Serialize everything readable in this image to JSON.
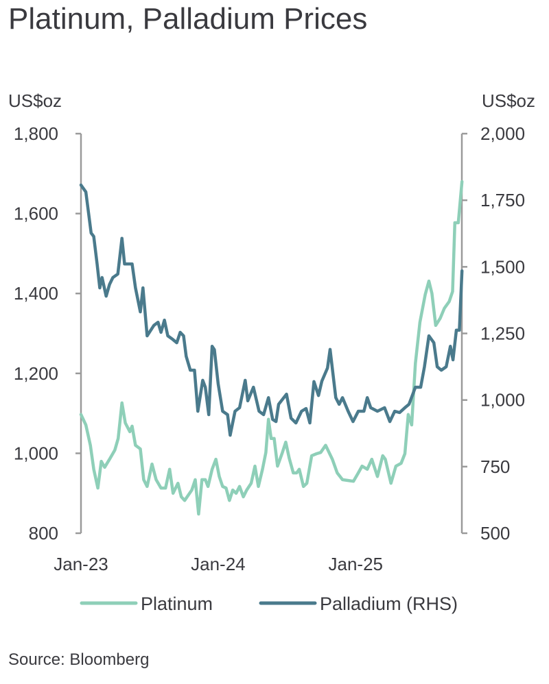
{
  "chart_data": {
    "type": "line",
    "title": "Platinum, Palladium Prices",
    "source": "Source: Bloomberg",
    "x_ticks": [
      "Jan-23",
      "Jan-24",
      "Jan-25"
    ],
    "x_tick_dates": [
      "2023-01-01",
      "2024-01-01",
      "2025-01-01"
    ],
    "xlim": [
      "2023-01-01",
      "2025-10-11"
    ],
    "y_left": {
      "label": "US$oz",
      "ylim": [
        800,
        1800
      ],
      "ticks": [
        "800",
        "1,000",
        "1,200",
        "1,400",
        "1,600",
        "1,800"
      ],
      "tick_values": [
        800,
        1000,
        1200,
        1400,
        1600,
        1800
      ]
    },
    "y_right": {
      "label": "US$oz",
      "ylim": [
        500,
        2000
      ],
      "ticks": [
        "500",
        "750",
        "1,000",
        "1,250",
        "1,500",
        "1,750",
        "2,000"
      ],
      "tick_values": [
        500,
        750,
        1000,
        1250,
        1500,
        1750,
        2000
      ]
    },
    "grid": false,
    "legend_position": "bottom",
    "series": [
      {
        "name": "Platinum",
        "axis": "left",
        "color": "#8ecfb8",
        "points": [
          [
            "2023-01-01",
            1097
          ],
          [
            "2023-01-14",
            1071
          ],
          [
            "2023-01-26",
            1020
          ],
          [
            "2023-02-04",
            960
          ],
          [
            "2023-02-15",
            913
          ],
          [
            "2023-02-24",
            980
          ],
          [
            "2023-03-05",
            965
          ],
          [
            "2023-03-18",
            985
          ],
          [
            "2023-04-01",
            1008
          ],
          [
            "2023-04-10",
            1037
          ],
          [
            "2023-04-20",
            1126
          ],
          [
            "2023-04-29",
            1076
          ],
          [
            "2023-05-11",
            1054
          ],
          [
            "2023-05-17",
            1068
          ],
          [
            "2023-05-26",
            1020
          ],
          [
            "2023-06-08",
            1011
          ],
          [
            "2023-06-17",
            934
          ],
          [
            "2023-06-26",
            917
          ],
          [
            "2023-07-09",
            973
          ],
          [
            "2023-07-20",
            934
          ],
          [
            "2023-08-02",
            913
          ],
          [
            "2023-08-14",
            913
          ],
          [
            "2023-08-25",
            960
          ],
          [
            "2023-09-03",
            900
          ],
          [
            "2023-09-16",
            925
          ],
          [
            "2023-09-25",
            891
          ],
          [
            "2023-10-04",
            882
          ],
          [
            "2023-10-23",
            908
          ],
          [
            "2023-11-01",
            934
          ],
          [
            "2023-11-10",
            848
          ],
          [
            "2023-11-19",
            934
          ],
          [
            "2023-11-28",
            934
          ],
          [
            "2023-12-05",
            917
          ],
          [
            "2023-12-16",
            960
          ],
          [
            "2023-12-26",
            985
          ],
          [
            "2024-01-04",
            942
          ],
          [
            "2024-01-13",
            917
          ],
          [
            "2024-01-22",
            913
          ],
          [
            "2024-01-31",
            882
          ],
          [
            "2024-02-09",
            908
          ],
          [
            "2024-02-18",
            900
          ],
          [
            "2024-02-27",
            917
          ],
          [
            "2024-03-08",
            891
          ],
          [
            "2024-03-17",
            908
          ],
          [
            "2024-03-29",
            925
          ],
          [
            "2024-04-08",
            968
          ],
          [
            "2024-04-17",
            917
          ],
          [
            "2024-04-28",
            960
          ],
          [
            "2024-05-07",
            1002
          ],
          [
            "2024-05-14",
            1085
          ],
          [
            "2024-05-21",
            1037
          ],
          [
            "2024-05-29",
            1037
          ],
          [
            "2024-06-07",
            968
          ],
          [
            "2024-06-20",
            1002
          ],
          [
            "2024-06-29",
            1028
          ],
          [
            "2024-07-08",
            988
          ],
          [
            "2024-07-19",
            951
          ],
          [
            "2024-07-28",
            951
          ],
          [
            "2024-08-04",
            960
          ],
          [
            "2024-08-15",
            917
          ],
          [
            "2024-08-24",
            925
          ],
          [
            "2024-09-06",
            994
          ],
          [
            "2024-09-19",
            999
          ],
          [
            "2024-09-30",
            1002
          ],
          [
            "2024-10-13",
            1020
          ],
          [
            "2024-10-31",
            985
          ],
          [
            "2024-11-13",
            951
          ],
          [
            "2024-11-27",
            934
          ],
          [
            "2024-12-26",
            930
          ],
          [
            "2025-01-08",
            951
          ],
          [
            "2025-01-18",
            968
          ],
          [
            "2025-02-01",
            960
          ],
          [
            "2025-02-13",
            985
          ],
          [
            "2025-02-28",
            942
          ],
          [
            "2025-03-14",
            994
          ],
          [
            "2025-03-21",
            985
          ],
          [
            "2025-04-05",
            925
          ],
          [
            "2025-04-18",
            968
          ],
          [
            "2025-05-02",
            975
          ],
          [
            "2025-05-12",
            999
          ],
          [
            "2025-05-21",
            1097
          ],
          [
            "2025-05-30",
            1071
          ],
          [
            "2025-06-09",
            1225
          ],
          [
            "2025-06-21",
            1328
          ],
          [
            "2025-07-05",
            1397
          ],
          [
            "2025-07-15",
            1431
          ],
          [
            "2025-07-23",
            1400
          ],
          [
            "2025-08-02",
            1320
          ],
          [
            "2025-08-14",
            1338
          ],
          [
            "2025-08-25",
            1363
          ],
          [
            "2025-09-07",
            1380
          ],
          [
            "2025-09-16",
            1405
          ],
          [
            "2025-09-22",
            1577
          ],
          [
            "2025-10-01",
            1577
          ],
          [
            "2025-10-11",
            1680
          ]
        ]
      },
      {
        "name": "Palladium (RHS)",
        "axis": "right",
        "color": "#4a7a8c",
        "points": [
          [
            "2023-01-01",
            1807
          ],
          [
            "2023-01-14",
            1781
          ],
          [
            "2023-01-28",
            1627
          ],
          [
            "2023-02-04",
            1614
          ],
          [
            "2023-02-13",
            1511
          ],
          [
            "2023-02-20",
            1421
          ],
          [
            "2023-02-26",
            1460
          ],
          [
            "2023-03-09",
            1390
          ],
          [
            "2023-03-18",
            1434
          ],
          [
            "2023-03-27",
            1460
          ],
          [
            "2023-04-09",
            1473
          ],
          [
            "2023-04-20",
            1607
          ],
          [
            "2023-04-27",
            1511
          ],
          [
            "2023-05-08",
            1511
          ],
          [
            "2023-05-17",
            1511
          ],
          [
            "2023-05-26",
            1421
          ],
          [
            "2023-06-08",
            1331
          ],
          [
            "2023-06-15",
            1421
          ],
          [
            "2023-06-26",
            1241
          ],
          [
            "2023-07-14",
            1280
          ],
          [
            "2023-07-25",
            1292
          ],
          [
            "2023-08-02",
            1254
          ],
          [
            "2023-08-11",
            1300
          ],
          [
            "2023-08-20",
            1241
          ],
          [
            "2023-09-02",
            1228
          ],
          [
            "2023-09-13",
            1215
          ],
          [
            "2023-09-22",
            1254
          ],
          [
            "2023-10-01",
            1241
          ],
          [
            "2023-10-08",
            1164
          ],
          [
            "2023-10-19",
            1112
          ],
          [
            "2023-10-30",
            1112
          ],
          [
            "2023-11-08",
            958
          ],
          [
            "2023-11-21",
            1074
          ],
          [
            "2023-11-28",
            1048
          ],
          [
            "2023-12-07",
            945
          ],
          [
            "2023-12-16",
            1202
          ],
          [
            "2023-12-22",
            1189
          ],
          [
            "2024-01-01",
            1061
          ],
          [
            "2024-01-13",
            958
          ],
          [
            "2024-01-26",
            945
          ],
          [
            "2024-02-02",
            868
          ],
          [
            "2024-02-15",
            958
          ],
          [
            "2024-02-27",
            971
          ],
          [
            "2024-03-13",
            1074
          ],
          [
            "2024-03-20",
            997
          ],
          [
            "2024-04-04",
            1048
          ],
          [
            "2024-04-19",
            958
          ],
          [
            "2024-05-01",
            945
          ],
          [
            "2024-05-14",
            1009
          ],
          [
            "2024-05-25",
            927
          ],
          [
            "2024-06-03",
            919
          ],
          [
            "2024-06-10",
            984
          ],
          [
            "2024-07-01",
            1022
          ],
          [
            "2024-07-13",
            932
          ],
          [
            "2024-07-26",
            914
          ],
          [
            "2024-08-10",
            958
          ],
          [
            "2024-08-22",
            968
          ],
          [
            "2024-09-01",
            914
          ],
          [
            "2024-09-12",
            1069
          ],
          [
            "2024-09-24",
            1017
          ],
          [
            "2024-10-03",
            1071
          ],
          [
            "2024-10-18",
            1120
          ],
          [
            "2024-10-25",
            1190
          ],
          [
            "2024-11-09",
            1009
          ],
          [
            "2024-11-18",
            984
          ],
          [
            "2024-11-27",
            1009
          ],
          [
            "2024-12-12",
            958
          ],
          [
            "2024-12-25",
            919
          ],
          [
            "2025-01-08",
            958
          ],
          [
            "2025-01-23",
            958
          ],
          [
            "2025-02-01",
            1009
          ],
          [
            "2025-02-10",
            971
          ],
          [
            "2025-02-28",
            958
          ],
          [
            "2025-03-19",
            971
          ],
          [
            "2025-04-02",
            919
          ],
          [
            "2025-04-15",
            958
          ],
          [
            "2025-04-28",
            953
          ],
          [
            "2025-05-12",
            971
          ],
          [
            "2025-05-23",
            984
          ],
          [
            "2025-06-09",
            1048
          ],
          [
            "2025-06-23",
            1048
          ],
          [
            "2025-07-03",
            1125
          ],
          [
            "2025-07-15",
            1241
          ],
          [
            "2025-07-28",
            1215
          ],
          [
            "2025-08-06",
            1125
          ],
          [
            "2025-08-17",
            1112
          ],
          [
            "2025-08-30",
            1125
          ],
          [
            "2025-09-10",
            1202
          ],
          [
            "2025-09-17",
            1151
          ],
          [
            "2025-09-26",
            1262
          ],
          [
            "2025-10-04",
            1262
          ],
          [
            "2025-10-11",
            1485
          ]
        ]
      }
    ]
  }
}
